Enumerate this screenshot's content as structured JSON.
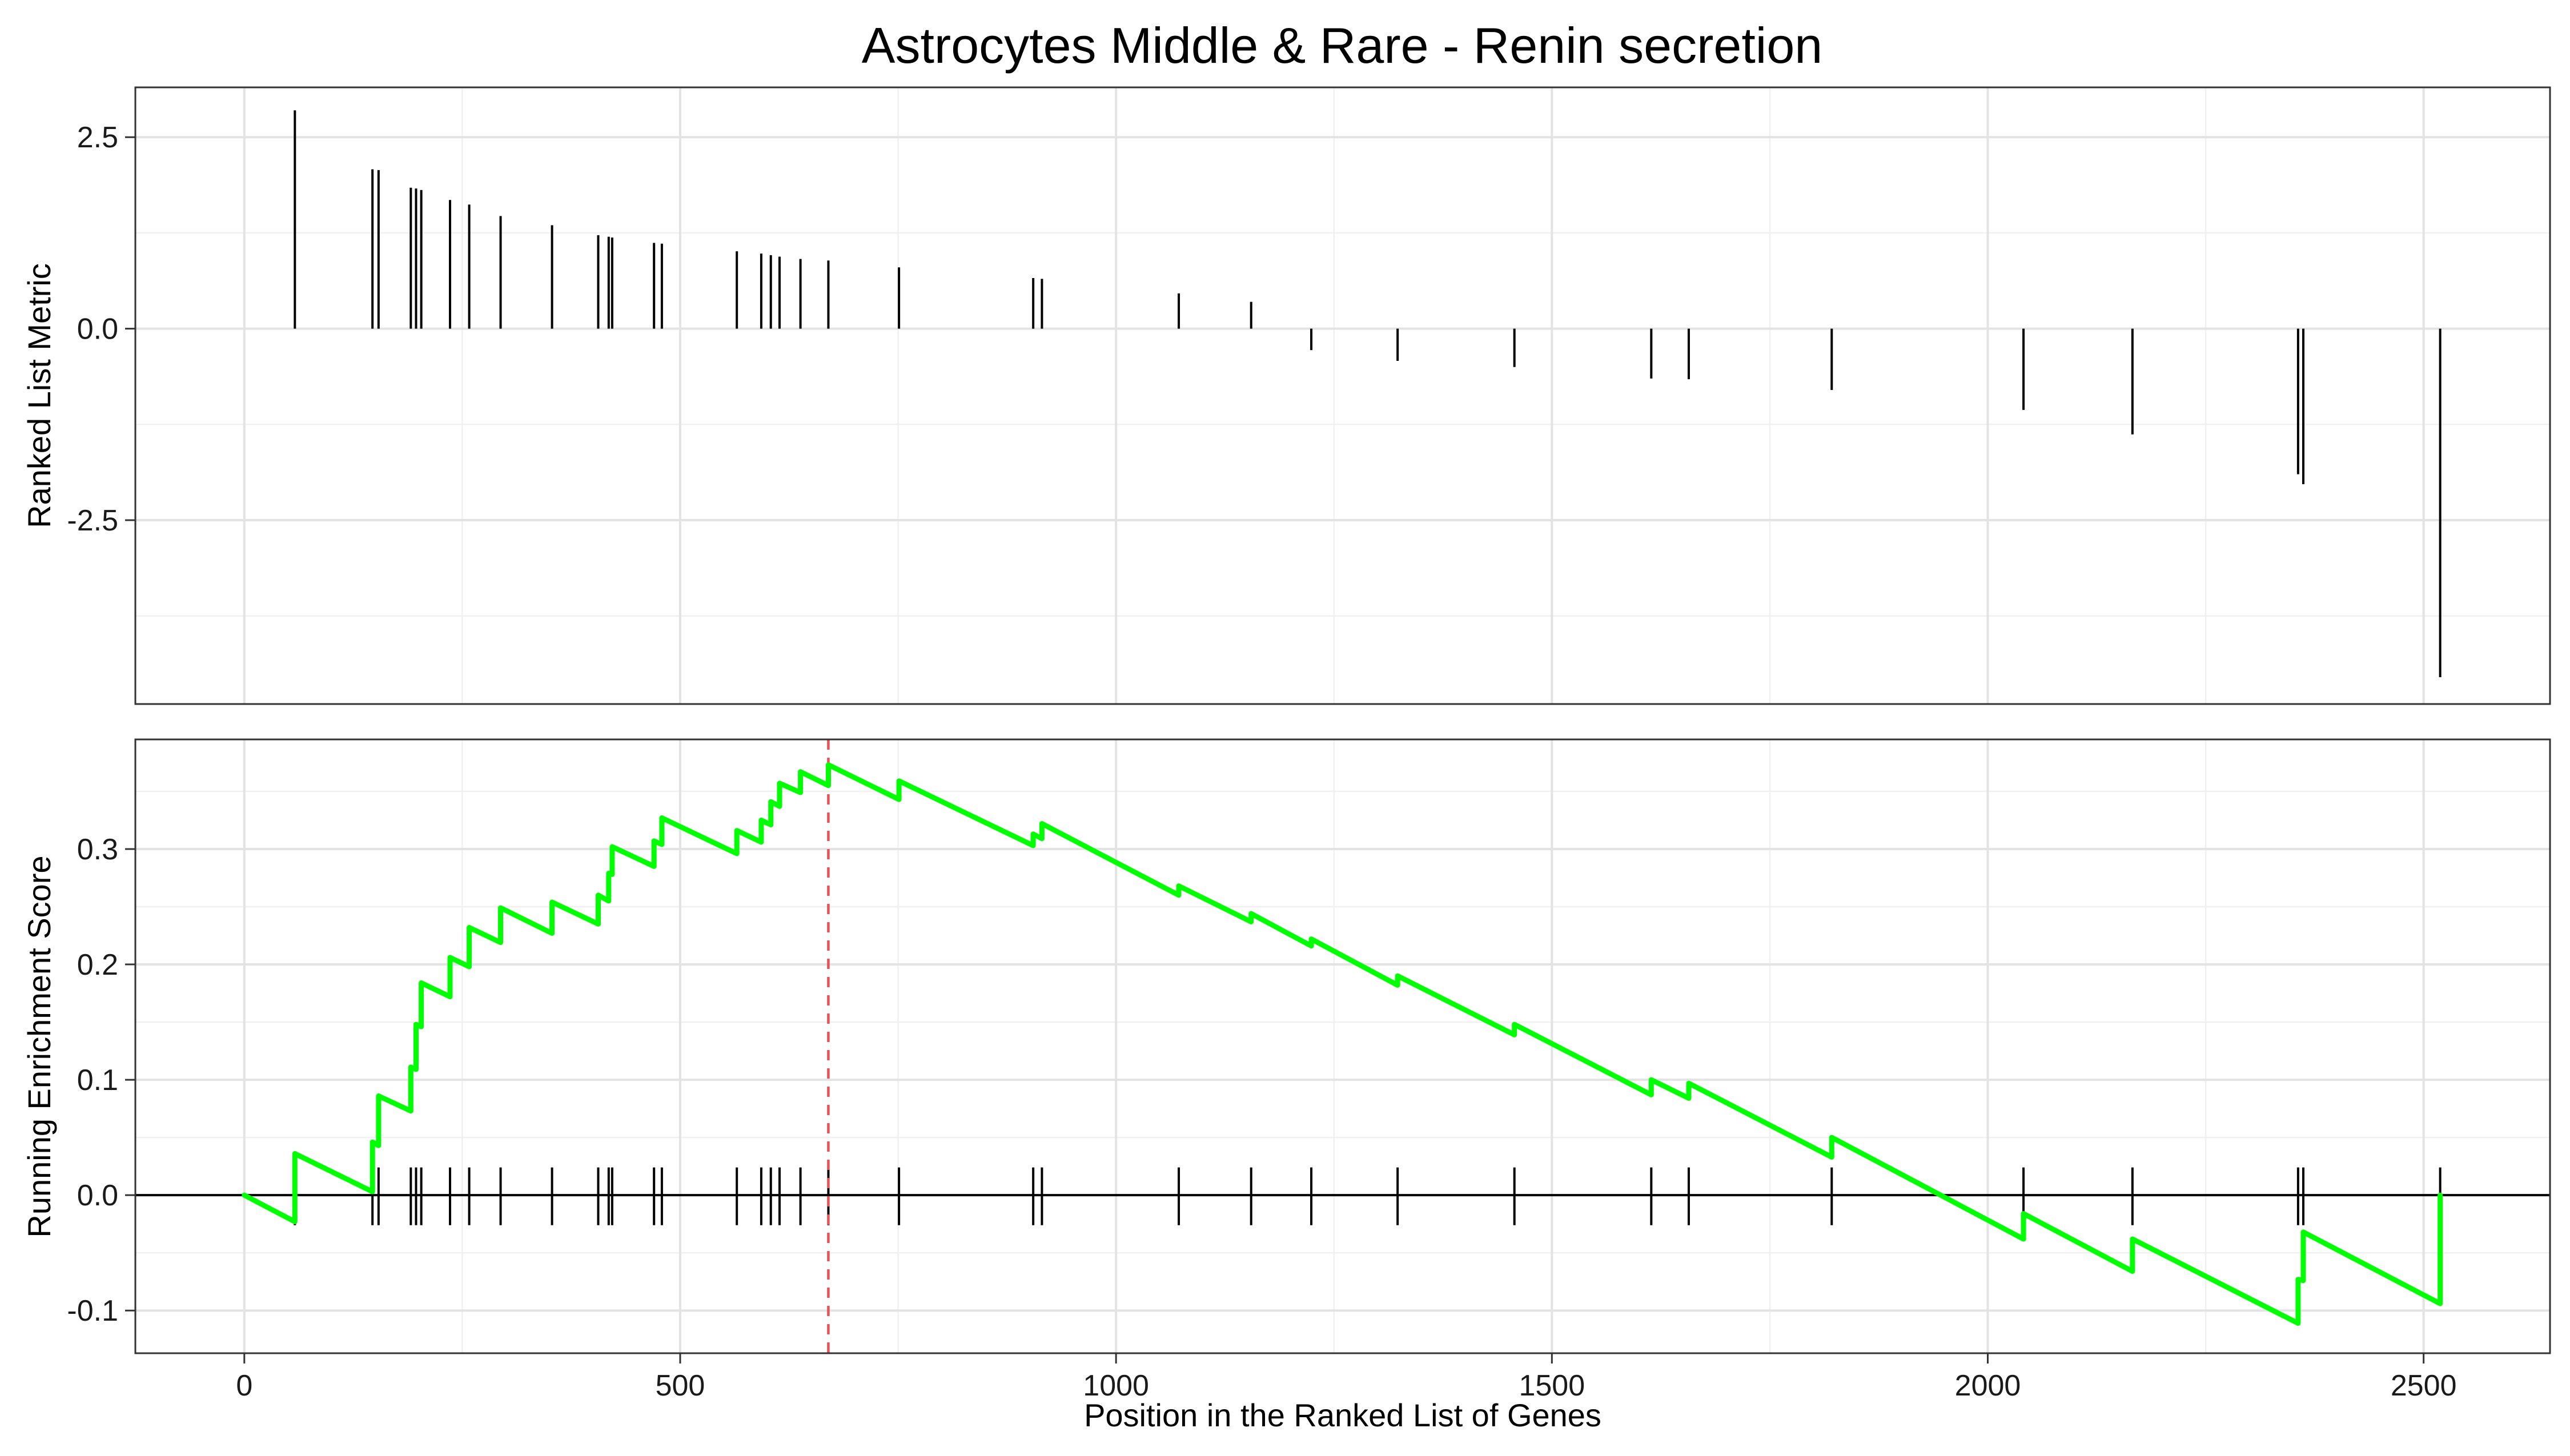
{
  "chart_data": [
    {
      "type": "bar",
      "panel": "ranked_list_metric",
      "title": "Astrocytes Middle & Rare - Renin secretion",
      "ylabel": "Ranked List Metric",
      "xlim": [
        -125,
        2645
      ],
      "ylim": [
        -4.9,
        3.15
      ],
      "yticks": [
        2.5,
        0.0,
        -2.5
      ],
      "ytick_labels": [
        "2.5",
        "0.0",
        "-2.5"
      ],
      "grid": true,
      "bar_color": "#000000",
      "bars": [
        {
          "x": 58,
          "y": 2.85
        },
        {
          "x": 147,
          "y": 2.08
        },
        {
          "x": 154,
          "y": 2.07
        },
        {
          "x": 191,
          "y": 1.84
        },
        {
          "x": 197,
          "y": 1.83
        },
        {
          "x": 203,
          "y": 1.81
        },
        {
          "x": 236,
          "y": 1.68
        },
        {
          "x": 258,
          "y": 1.62
        },
        {
          "x": 294,
          "y": 1.47
        },
        {
          "x": 353,
          "y": 1.35
        },
        {
          "x": 406,
          "y": 1.22
        },
        {
          "x": 418,
          "y": 1.2
        },
        {
          "x": 422,
          "y": 1.19
        },
        {
          "x": 470,
          "y": 1.12
        },
        {
          "x": 479,
          "y": 1.11
        },
        {
          "x": 565,
          "y": 1.01
        },
        {
          "x": 593,
          "y": 0.98
        },
        {
          "x": 604,
          "y": 0.96
        },
        {
          "x": 614,
          "y": 0.94
        },
        {
          "x": 638,
          "y": 0.91
        },
        {
          "x": 670,
          "y": 0.89
        },
        {
          "x": 751,
          "y": 0.8
        },
        {
          "x": 905,
          "y": 0.66
        },
        {
          "x": 915,
          "y": 0.65
        },
        {
          "x": 1072,
          "y": 0.46
        },
        {
          "x": 1155,
          "y": 0.35
        },
        {
          "x": 1224,
          "y": -0.28
        },
        {
          "x": 1323,
          "y": -0.42
        },
        {
          "x": 1457,
          "y": -0.5
        },
        {
          "x": 1614,
          "y": -0.65
        },
        {
          "x": 1657,
          "y": -0.66
        },
        {
          "x": 1821,
          "y": -0.8
        },
        {
          "x": 2041,
          "y": -1.06
        },
        {
          "x": 2166,
          "y": -1.38
        },
        {
          "x": 2356,
          "y": -1.9
        },
        {
          "x": 2362,
          "y": -2.03
        },
        {
          "x": 2519,
          "y": -4.55
        }
      ]
    },
    {
      "type": "line",
      "panel": "running_enrichment_score",
      "xlabel": "Position in the Ranked List of Genes",
      "ylabel": "Running Enrichment Score",
      "xlim": [
        -125,
        2645
      ],
      "ylim": [
        -0.137,
        0.395
      ],
      "xticks": [
        0,
        500,
        1000,
        1500,
        2000,
        2500
      ],
      "xtick_labels": [
        "0",
        "500",
        "1000",
        "1500",
        "2000",
        "2500"
      ],
      "yticks": [
        0.3,
        0.2,
        0.1,
        0.0,
        -0.1
      ],
      "ytick_labels": [
        "0.3",
        "0.2",
        "0.1",
        "0.0",
        "-0.1"
      ],
      "grid": true,
      "line_color": "#00ff00",
      "peak_line": {
        "x": 670,
        "color": "#e8505b",
        "style": "dashed"
      },
      "zero_line": {
        "y": 0.0,
        "color": "#000000"
      },
      "hit_marks": [
        58,
        147,
        154,
        191,
        197,
        203,
        236,
        258,
        294,
        353,
        406,
        418,
        422,
        470,
        479,
        565,
        593,
        604,
        614,
        638,
        670,
        751,
        905,
        915,
        1072,
        1155,
        1224,
        1323,
        1457,
        1614,
        1657,
        1821,
        2041,
        2166,
        2356,
        2362,
        2519
      ],
      "points": [
        {
          "x": 0,
          "y": 0.0
        },
        {
          "x": 58,
          "y": -0.023
        },
        {
          "x": 58,
          "y": 0.036
        },
        {
          "x": 147,
          "y": 0.003
        },
        {
          "x": 147,
          "y": 0.046
        },
        {
          "x": 154,
          "y": 0.043
        },
        {
          "x": 154,
          "y": 0.086
        },
        {
          "x": 191,
          "y": 0.073
        },
        {
          "x": 191,
          "y": 0.111
        },
        {
          "x": 197,
          "y": 0.109
        },
        {
          "x": 197,
          "y": 0.148
        },
        {
          "x": 203,
          "y": 0.146
        },
        {
          "x": 203,
          "y": 0.184
        },
        {
          "x": 236,
          "y": 0.172
        },
        {
          "x": 236,
          "y": 0.206
        },
        {
          "x": 258,
          "y": 0.198
        },
        {
          "x": 258,
          "y": 0.232
        },
        {
          "x": 294,
          "y": 0.219
        },
        {
          "x": 294,
          "y": 0.249
        },
        {
          "x": 353,
          "y": 0.227
        },
        {
          "x": 353,
          "y": 0.254
        },
        {
          "x": 406,
          "y": 0.235
        },
        {
          "x": 406,
          "y": 0.26
        },
        {
          "x": 418,
          "y": 0.255
        },
        {
          "x": 418,
          "y": 0.279
        },
        {
          "x": 422,
          "y": 0.278
        },
        {
          "x": 422,
          "y": 0.302
        },
        {
          "x": 470,
          "y": 0.285
        },
        {
          "x": 470,
          "y": 0.307
        },
        {
          "x": 479,
          "y": 0.304
        },
        {
          "x": 479,
          "y": 0.327
        },
        {
          "x": 565,
          "y": 0.296
        },
        {
          "x": 565,
          "y": 0.316
        },
        {
          "x": 593,
          "y": 0.306
        },
        {
          "x": 593,
          "y": 0.325
        },
        {
          "x": 604,
          "y": 0.321
        },
        {
          "x": 604,
          "y": 0.341
        },
        {
          "x": 614,
          "y": 0.337
        },
        {
          "x": 614,
          "y": 0.357
        },
        {
          "x": 638,
          "y": 0.349
        },
        {
          "x": 638,
          "y": 0.367
        },
        {
          "x": 670,
          "y": 0.355
        },
        {
          "x": 670,
          "y": 0.373
        },
        {
          "x": 751,
          "y": 0.343
        },
        {
          "x": 751,
          "y": 0.359
        },
        {
          "x": 905,
          "y": 0.303
        },
        {
          "x": 905,
          "y": 0.313
        },
        {
          "x": 915,
          "y": 0.309
        },
        {
          "x": 915,
          "y": 0.322
        },
        {
          "x": 1072,
          "y": 0.26
        },
        {
          "x": 1072,
          "y": 0.268
        },
        {
          "x": 1155,
          "y": 0.237
        },
        {
          "x": 1155,
          "y": 0.244
        },
        {
          "x": 1224,
          "y": 0.216
        },
        {
          "x": 1224,
          "y": 0.222
        },
        {
          "x": 1323,
          "y": 0.182
        },
        {
          "x": 1323,
          "y": 0.19
        },
        {
          "x": 1457,
          "y": 0.139
        },
        {
          "x": 1457,
          "y": 0.148
        },
        {
          "x": 1614,
          "y": 0.087
        },
        {
          "x": 1614,
          "y": 0.1
        },
        {
          "x": 1657,
          "y": 0.084
        },
        {
          "x": 1657,
          "y": 0.097
        },
        {
          "x": 1821,
          "y": 0.033
        },
        {
          "x": 1821,
          "y": 0.05
        },
        {
          "x": 2041,
          "y": -0.038
        },
        {
          "x": 2041,
          "y": -0.016
        },
        {
          "x": 2166,
          "y": -0.066
        },
        {
          "x": 2166,
          "y": -0.038
        },
        {
          "x": 2356,
          "y": -0.111
        },
        {
          "x": 2356,
          "y": -0.073
        },
        {
          "x": 2362,
          "y": -0.074
        },
        {
          "x": 2362,
          "y": -0.032
        },
        {
          "x": 2519,
          "y": -0.094
        },
        {
          "x": 2519,
          "y": 0.0
        }
      ]
    }
  ]
}
